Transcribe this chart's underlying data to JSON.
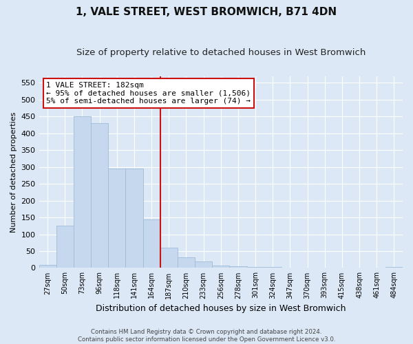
{
  "title": "1, VALE STREET, WEST BROMWICH, B71 4DN",
  "subtitle": "Size of property relative to detached houses in West Bromwich",
  "xlabel": "Distribution of detached houses by size in West Bromwich",
  "ylabel": "Number of detached properties",
  "footer_line1": "Contains HM Land Registry data © Crown copyright and database right 2024.",
  "footer_line2": "Contains public sector information licensed under the Open Government Licence v3.0.",
  "bar_labels": [
    "27sqm",
    "50sqm",
    "73sqm",
    "96sqm",
    "118sqm",
    "141sqm",
    "164sqm",
    "187sqm",
    "210sqm",
    "233sqm",
    "256sqm",
    "278sqm",
    "301sqm",
    "324sqm",
    "347sqm",
    "370sqm",
    "393sqm",
    "415sqm",
    "438sqm",
    "461sqm",
    "484sqm"
  ],
  "bar_values": [
    10,
    125,
    450,
    430,
    295,
    295,
    143,
    60,
    32,
    20,
    8,
    5,
    3,
    2,
    1,
    1,
    1,
    0,
    1,
    0,
    3
  ],
  "bar_color": "#c5d8ee",
  "bar_edge_color": "#a0bcd8",
  "vline_index": 7,
  "vline_color": "#cc1111",
  "annotation_line1": "1 VALE STREET: 182sqm",
  "annotation_line2": "← 95% of detached houses are smaller (1,506)",
  "annotation_line3": "5% of semi-detached houses are larger (74) →",
  "annotation_box_facecolor": "#ffffff",
  "annotation_box_edgecolor": "#cc1111",
  "ylim": [
    0,
    570
  ],
  "yticks": [
    0,
    50,
    100,
    150,
    200,
    250,
    300,
    350,
    400,
    450,
    500,
    550
  ],
  "background_color": "#dce8f5",
  "axes_background": "#dce8f5",
  "grid_color": "#ffffff",
  "title_fontsize": 11,
  "subtitle_fontsize": 9.5,
  "xlabel_fontsize": 9,
  "ylabel_fontsize": 8,
  "tick_fontsize": 8,
  "annotation_fontsize": 8
}
